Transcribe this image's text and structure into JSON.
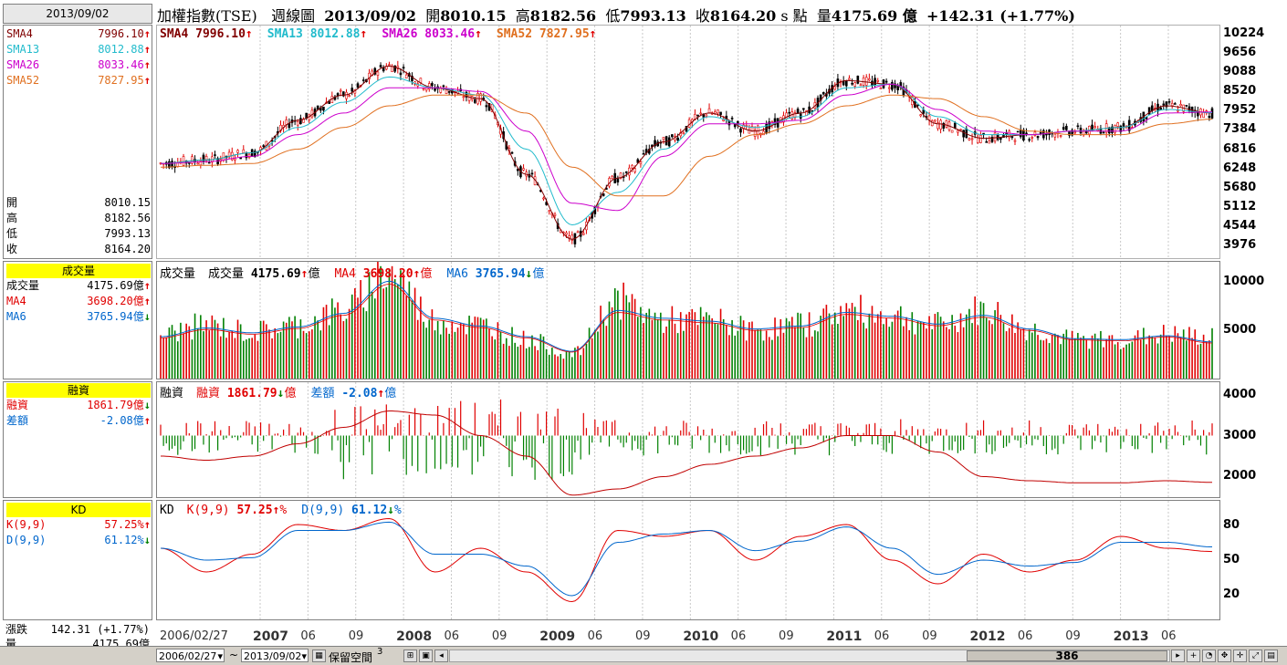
{
  "header": {
    "date": "2013/09/02",
    "title": "加權指數(TSE)",
    "period": "週線圖",
    "title_date": "2013/09/02",
    "open_label": "開",
    "open": "8010.15",
    "high_label": "高",
    "high": "8182.56",
    "low_label": "低",
    "low": "7993.13",
    "close_label": "收",
    "close": "8164.20",
    "unit_label": "s 點",
    "vol_label": "量",
    "vol": "4175.69 億",
    "change": "+142.31 (+1.77%)"
  },
  "left_panel": {
    "sma": [
      {
        "name": "SMA4",
        "value": "7996.10",
        "dir": "up",
        "color": "#800000"
      },
      {
        "name": "SMA13",
        "value": "8012.88",
        "dir": "up",
        "color": "#22bbcc"
      },
      {
        "name": "SMA26",
        "value": "8033.46",
        "dir": "up",
        "color": "#cc00cc"
      },
      {
        "name": "SMA52",
        "value": "7827.95",
        "dir": "up",
        "color": "#e07020"
      }
    ],
    "ohlc": [
      {
        "label": "開",
        "value": "8010.15"
      },
      {
        "label": "高",
        "value": "8182.56"
      },
      {
        "label": "低",
        "value": "7993.13"
      },
      {
        "label": "收",
        "value": "8164.20"
      }
    ],
    "volume_header": "成交量",
    "volume": [
      {
        "label": "成交量",
        "value": "4175.69億",
        "dir": "up",
        "color": "#000"
      },
      {
        "label": "MA4",
        "value": "3698.20億",
        "dir": "up",
        "color": "#e00000"
      },
      {
        "label": "MA6",
        "value": "3765.94億",
        "dir": "down",
        "color": "#0066cc"
      }
    ],
    "margin_header": "融資",
    "margin": [
      {
        "label": "融資",
        "value": "1861.79億",
        "dir": "down",
        "color": "#e00000"
      },
      {
        "label": "差額",
        "value": "-2.08億",
        "dir": "up",
        "color": "#0066cc"
      }
    ],
    "kd_header": "KD",
    "kd": [
      {
        "label": "K(9,9)",
        "value": "57.25%",
        "dir": "up",
        "color": "#e00000"
      },
      {
        "label": "D(9,9)",
        "value": "61.12%",
        "dir": "down",
        "color": "#0066cc"
      }
    ],
    "change_label": "漲跌",
    "change_value": "142.31 (+1.77%)",
    "vol_label": "量",
    "vol_value": "4175.69億"
  },
  "price_legend": [
    {
      "text": "SMA4 7996.10",
      "dir": "up",
      "color": "#800000"
    },
    {
      "text": "SMA13 8012.88",
      "dir": "up",
      "color": "#22bbcc"
    },
    {
      "text": "SMA26 8033.46",
      "dir": "up",
      "color": "#cc00cc"
    },
    {
      "text": "SMA52 7827.95",
      "dir": "up",
      "color": "#e07020"
    }
  ],
  "volume_legend": {
    "name": "成交量",
    "items": [
      {
        "label": "成交量",
        "value": "4175.69",
        "unit": "億",
        "dir": "up",
        "color": "#000"
      },
      {
        "label": "MA4",
        "value": "3698.20",
        "unit": "億",
        "dir": "up",
        "color": "#e00000"
      },
      {
        "label": "MA6",
        "value": "3765.94",
        "unit": "億",
        "dir": "down",
        "color": "#0066cc"
      }
    ]
  },
  "margin_legend": {
    "name": "融資",
    "items": [
      {
        "label": "融資",
        "value": "1861.79",
        "unit": "億",
        "dir": "down",
        "color": "#e00000"
      },
      {
        "label": "差額",
        "value": "-2.08",
        "unit": "億",
        "dir": "up",
        "color": "#0066cc"
      }
    ]
  },
  "kd_legend": {
    "name": "KD",
    "items": [
      {
        "label": "K(9,9)",
        "value": "57.25",
        "unit": "%",
        "dir": "up",
        "color": "#e00000"
      },
      {
        "label": "D(9,9)",
        "value": "61.12",
        "unit": "%",
        "dir": "down",
        "color": "#0066cc"
      }
    ]
  },
  "price_axis": [
    "10224",
    "9656",
    "9088",
    "8520",
    "7952",
    "7384",
    "6816",
    "6248",
    "5680",
    "5112",
    "4544",
    "3976"
  ],
  "volume_axis": [
    "10000",
    "5000"
  ],
  "margin_axis": [
    "4000",
    "3000",
    "2000"
  ],
  "kd_axis": [
    "80",
    "50",
    "20"
  ],
  "x_axis": [
    {
      "label": "2006/02/27",
      "bold": false
    },
    {
      "label": "2007",
      "bold": true
    },
    {
      "label": "06",
      "bold": false
    },
    {
      "label": "09",
      "bold": false
    },
    {
      "label": "2008",
      "bold": true
    },
    {
      "label": "06",
      "bold": false
    },
    {
      "label": "09",
      "bold": false
    },
    {
      "label": "2009",
      "bold": true
    },
    {
      "label": "06",
      "bold": false
    },
    {
      "label": "09",
      "bold": false
    },
    {
      "label": "2010",
      "bold": true
    },
    {
      "label": "06",
      "bold": false
    },
    {
      "label": "09",
      "bold": false
    },
    {
      "label": "2011",
      "bold": true
    },
    {
      "label": "06",
      "bold": false
    },
    {
      "label": "09",
      "bold": false
    },
    {
      "label": "2012",
      "bold": true
    },
    {
      "label": "06",
      "bold": false
    },
    {
      "label": "09",
      "bold": false
    },
    {
      "label": "2013",
      "bold": true
    },
    {
      "label": "06",
      "bold": false
    }
  ],
  "toolbar": {
    "start_date": "2006/02/27",
    "tilde": "~",
    "end_date": "2013/09/02",
    "reserve_label": "保留空間",
    "reserve_value": "3",
    "scroll_value": "386"
  },
  "colors": {
    "up": "#e00000",
    "down": "#008000",
    "k": "#e00000",
    "d": "#0066cc",
    "margin": "#c00000",
    "sma4": "#800000",
    "sma13": "#22bbcc",
    "sma26": "#cc00cc",
    "sma52": "#e07020"
  },
  "chart_data": [
    {
      "type": "line",
      "title": "加權指數(TSE) 週線圖",
      "x": [
        "2006/02",
        "2006/06",
        "2006/09",
        "2007/01",
        "2007/06",
        "2007/09",
        "2008/01",
        "2008/06",
        "2008/09",
        "2009/01",
        "2009/06",
        "2009/09",
        "2010/01",
        "2010/06",
        "2010/09",
        "2011/01",
        "2011/06",
        "2011/09",
        "2012/01",
        "2012/06",
        "2012/09",
        "2013/01",
        "2013/06",
        "2013/09"
      ],
      "series": [
        {
          "name": "SMA4",
          "values": [
            6600,
            6700,
            6900,
            7800,
            8500,
            9300,
            8700,
            8400,
            6300,
            4500,
            6200,
            7200,
            8000,
            7500,
            8000,
            8900,
            8800,
            7700,
            7300,
            7400,
            7500,
            7600,
            8200,
            8000
          ]
        },
        {
          "name": "SMA13",
          "values": [
            6600,
            6700,
            6900,
            7600,
            8300,
            9000,
            8700,
            8500,
            7000,
            4900,
            5800,
            7000,
            7900,
            7600,
            7900,
            8700,
            8800,
            7900,
            7400,
            7400,
            7500,
            7600,
            8100,
            8010
          ]
        },
        {
          "name": "SMA26",
          "values": [
            6600,
            6650,
            6800,
            7400,
            8000,
            8700,
            8700,
            8600,
            7500,
            5500,
            5300,
            6800,
            7700,
            7700,
            7800,
            8500,
            8800,
            8100,
            7500,
            7400,
            7500,
            7500,
            8000,
            8030
          ]
        },
        {
          "name": "SMA52",
          "values": [
            6500,
            6550,
            6600,
            7000,
            7600,
            8200,
            8500,
            8500,
            8000,
            6500,
            5700,
            5700,
            6800,
            7400,
            7700,
            8200,
            8500,
            8400,
            7900,
            7500,
            7400,
            7400,
            7700,
            7830
          ]
        }
      ],
      "ylim": [
        3976,
        10224
      ]
    },
    {
      "type": "bar",
      "title": "成交量",
      "x": [
        "2006/02",
        "2006/06",
        "2006/09",
        "2007/01",
        "2007/06",
        "2007/09",
        "2008/01",
        "2008/06",
        "2008/09",
        "2009/01",
        "2009/06",
        "2009/09",
        "2010/01",
        "2010/06",
        "2010/09",
        "2011/01",
        "2011/06",
        "2011/09",
        "2012/01",
        "2012/06",
        "2012/09",
        "2013/01",
        "2013/06",
        "2013/09"
      ],
      "series": [
        {
          "name": "成交量",
          "values": [
            4500,
            5500,
            4800,
            5500,
            7000,
            11000,
            6000,
            5500,
            4000,
            2500,
            8000,
            6000,
            6000,
            5000,
            5500,
            7000,
            6500,
            5500,
            7000,
            5000,
            4000,
            4000,
            4500,
            4175.69
          ]
        },
        {
          "name": "MA6",
          "values": [
            4300,
            5200,
            4700,
            5300,
            6700,
            10000,
            6200,
            5400,
            4300,
            2800,
            7000,
            6200,
            5900,
            5100,
            5400,
            6800,
            6400,
            5600,
            6500,
            5100,
            4100,
            4000,
            4400,
            3765.94
          ]
        }
      ],
      "ylim": [
        0,
        12000
      ]
    },
    {
      "type": "line",
      "title": "融資",
      "x": [
        "2006/02",
        "2006/06",
        "2006/09",
        "2007/01",
        "2007/06",
        "2007/09",
        "2008/01",
        "2008/06",
        "2008/09",
        "2009/01",
        "2009/06",
        "2009/09",
        "2010/01",
        "2010/06",
        "2010/09",
        "2011/01",
        "2011/06",
        "2011/09",
        "2012/01",
        "2012/06",
        "2012/09",
        "2013/01",
        "2013/06",
        "2013/09"
      ],
      "series": [
        {
          "name": "融資",
          "values": [
            2500,
            2400,
            2500,
            2800,
            3200,
            3600,
            3500,
            3000,
            2500,
            1550,
            1700,
            2000,
            2300,
            2500,
            2700,
            3000,
            3000,
            2600,
            2000,
            1900,
            1850,
            1850,
            1900,
            1861.79
          ]
        }
      ],
      "ylim": [
        1500,
        4300
      ]
    },
    {
      "type": "line",
      "title": "KD",
      "x": [
        "2006/02",
        "2006/06",
        "2006/09",
        "2007/01",
        "2007/06",
        "2007/09",
        "2008/01",
        "2008/06",
        "2008/09",
        "2009/01",
        "2009/06",
        "2009/09",
        "2010/01",
        "2010/06",
        "2010/09",
        "2011/01",
        "2011/06",
        "2011/09",
        "2012/01",
        "2012/06",
        "2012/09",
        "2013/01",
        "2013/06",
        "2013/09"
      ],
      "series": [
        {
          "name": "K(9,9)",
          "values": [
            60,
            40,
            55,
            80,
            75,
            85,
            40,
            60,
            40,
            15,
            75,
            70,
            75,
            50,
            70,
            80,
            50,
            30,
            55,
            40,
            50,
            70,
            60,
            57.25
          ]
        },
        {
          "name": "D(9,9)",
          "values": [
            60,
            50,
            52,
            75,
            75,
            82,
            55,
            55,
            45,
            20,
            65,
            72,
            75,
            58,
            66,
            78,
            60,
            38,
            50,
            45,
            48,
            65,
            65,
            61.12
          ]
        }
      ],
      "ylim": [
        0,
        100
      ]
    }
  ]
}
